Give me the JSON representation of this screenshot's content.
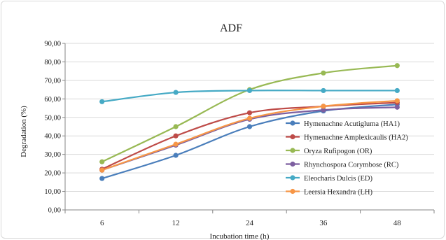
{
  "chart_data": {
    "type": "line",
    "title": "ADF",
    "xlabel": "Incubation time (h)",
    "ylabel": "Degradation (%)",
    "categories": [
      "6",
      "12",
      "24",
      "36",
      "48"
    ],
    "yticks": [
      "0,00",
      "10,00",
      "20,00",
      "30,00",
      "40,00",
      "50,00",
      "60,00",
      "70,00",
      "80,00",
      "90,00"
    ],
    "ylim": [
      0,
      90
    ],
    "grid": "horizontal",
    "legend_position": "right",
    "series": [
      {
        "name": "Hymenachne Acutigluma (HA1)",
        "color": "#4a7ebb",
        "values": [
          17,
          29.5,
          45,
          53.5,
          57
        ]
      },
      {
        "name": "Hymenachne Amplexicaulis (HA2)",
        "color": "#be4b48",
        "values": [
          22,
          40,
          52.5,
          56,
          58
        ]
      },
      {
        "name": "Oryza Rufipogon (OR)",
        "color": "#98b954",
        "values": [
          26,
          45,
          65,
          74,
          78
        ]
      },
      {
        "name": "Rhynchospora Corymbose (RC)",
        "color": "#7d5fa0",
        "values": [
          21.5,
          35,
          49,
          54,
          55.5
        ]
      },
      {
        "name": "Eleocharis Dulcis (ED)",
        "color": "#46aac5",
        "values": [
          58.5,
          63.5,
          64.5,
          64.5,
          64.5
        ]
      },
      {
        "name": "Leersia Hexandra (LH)",
        "color": "#f79646",
        "values": [
          21.5,
          35.5,
          49.5,
          56,
          59
        ]
      }
    ]
  }
}
